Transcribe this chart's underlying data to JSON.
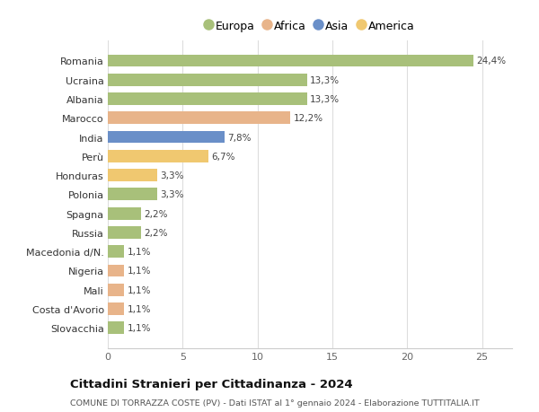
{
  "categories": [
    "Slovacchia",
    "Costa d'Avorio",
    "Mali",
    "Nigeria",
    "Macedonia d/N.",
    "Russia",
    "Spagna",
    "Polonia",
    "Honduras",
    "Perù",
    "India",
    "Marocco",
    "Albania",
    "Ucraina",
    "Romania"
  ],
  "values": [
    1.1,
    1.1,
    1.1,
    1.1,
    1.1,
    2.2,
    2.2,
    3.3,
    3.3,
    6.7,
    7.8,
    12.2,
    13.3,
    13.3,
    24.4
  ],
  "labels": [
    "1,1%",
    "1,1%",
    "1,1%",
    "1,1%",
    "1,1%",
    "2,2%",
    "2,2%",
    "3,3%",
    "3,3%",
    "6,7%",
    "7,8%",
    "12,2%",
    "13,3%",
    "13,3%",
    "24,4%"
  ],
  "continents": [
    "Europa",
    "Africa",
    "Africa",
    "Africa",
    "Europa",
    "Europa",
    "Europa",
    "Europa",
    "America",
    "America",
    "Asia",
    "Africa",
    "Europa",
    "Europa",
    "Europa"
  ],
  "colors": {
    "Europa": "#a8c07a",
    "Africa": "#e8b48a",
    "Asia": "#6a8fc8",
    "America": "#f0c870"
  },
  "legend_order": [
    "Europa",
    "Africa",
    "Asia",
    "America"
  ],
  "title": "Cittadini Stranieri per Cittadinanza - 2024",
  "subtitle": "COMUNE DI TORRAZZA COSTE (PV) - Dati ISTAT al 1° gennaio 2024 - Elaborazione TUTTITALIA.IT",
  "xlim": [
    0,
    27
  ],
  "xticks": [
    0,
    5,
    10,
    15,
    20,
    25
  ],
  "bg_color": "#ffffff",
  "grid_color": "#dddddd"
}
